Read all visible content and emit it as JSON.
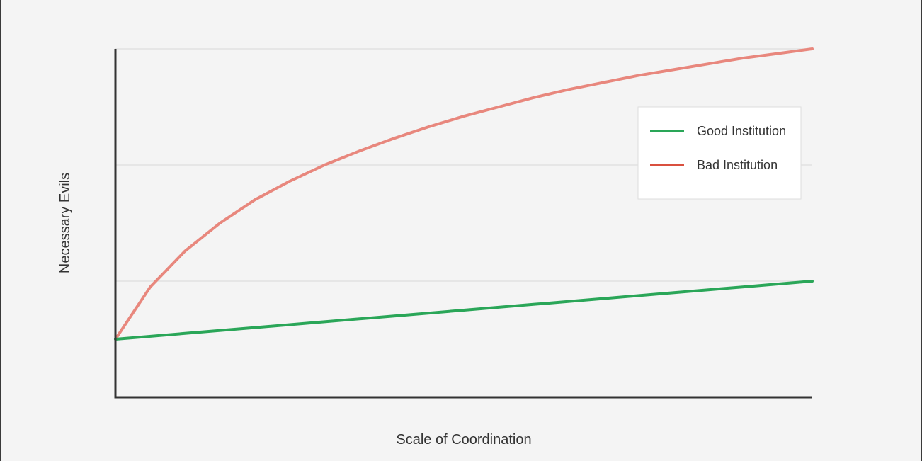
{
  "chart_data": {
    "type": "line",
    "title": "",
    "xlabel": "Scale of Coordination",
    "ylabel": "Necessary Evils",
    "xlim": [
      0,
      1
    ],
    "ylim": [
      0,
      3
    ],
    "grid": "horizontal",
    "legend_position": "top-right",
    "series": [
      {
        "name": "Good Institution",
        "color": "#2aa658",
        "x": [
          0,
          0.1,
          0.2,
          0.3,
          0.4,
          0.5,
          0.6,
          0.7,
          0.8,
          0.9,
          1.0
        ],
        "y": [
          0.5,
          0.55,
          0.6,
          0.65,
          0.7,
          0.75,
          0.8,
          0.85,
          0.9,
          0.95,
          1.0
        ]
      },
      {
        "name": "Bad Institution",
        "color": "#e8877d",
        "legend_color": "#d9503f",
        "x": [
          0,
          0.05,
          0.1,
          0.15,
          0.2,
          0.25,
          0.3,
          0.35,
          0.4,
          0.45,
          0.5,
          0.55,
          0.6,
          0.65,
          0.7,
          0.75,
          0.8,
          0.85,
          0.9,
          0.95,
          1.0
        ],
        "y": [
          0.5,
          0.95,
          1.26,
          1.5,
          1.7,
          1.86,
          2.0,
          2.12,
          2.23,
          2.33,
          2.42,
          2.5,
          2.58,
          2.65,
          2.71,
          2.77,
          2.82,
          2.87,
          2.92,
          2.96,
          3.0
        ]
      }
    ]
  }
}
